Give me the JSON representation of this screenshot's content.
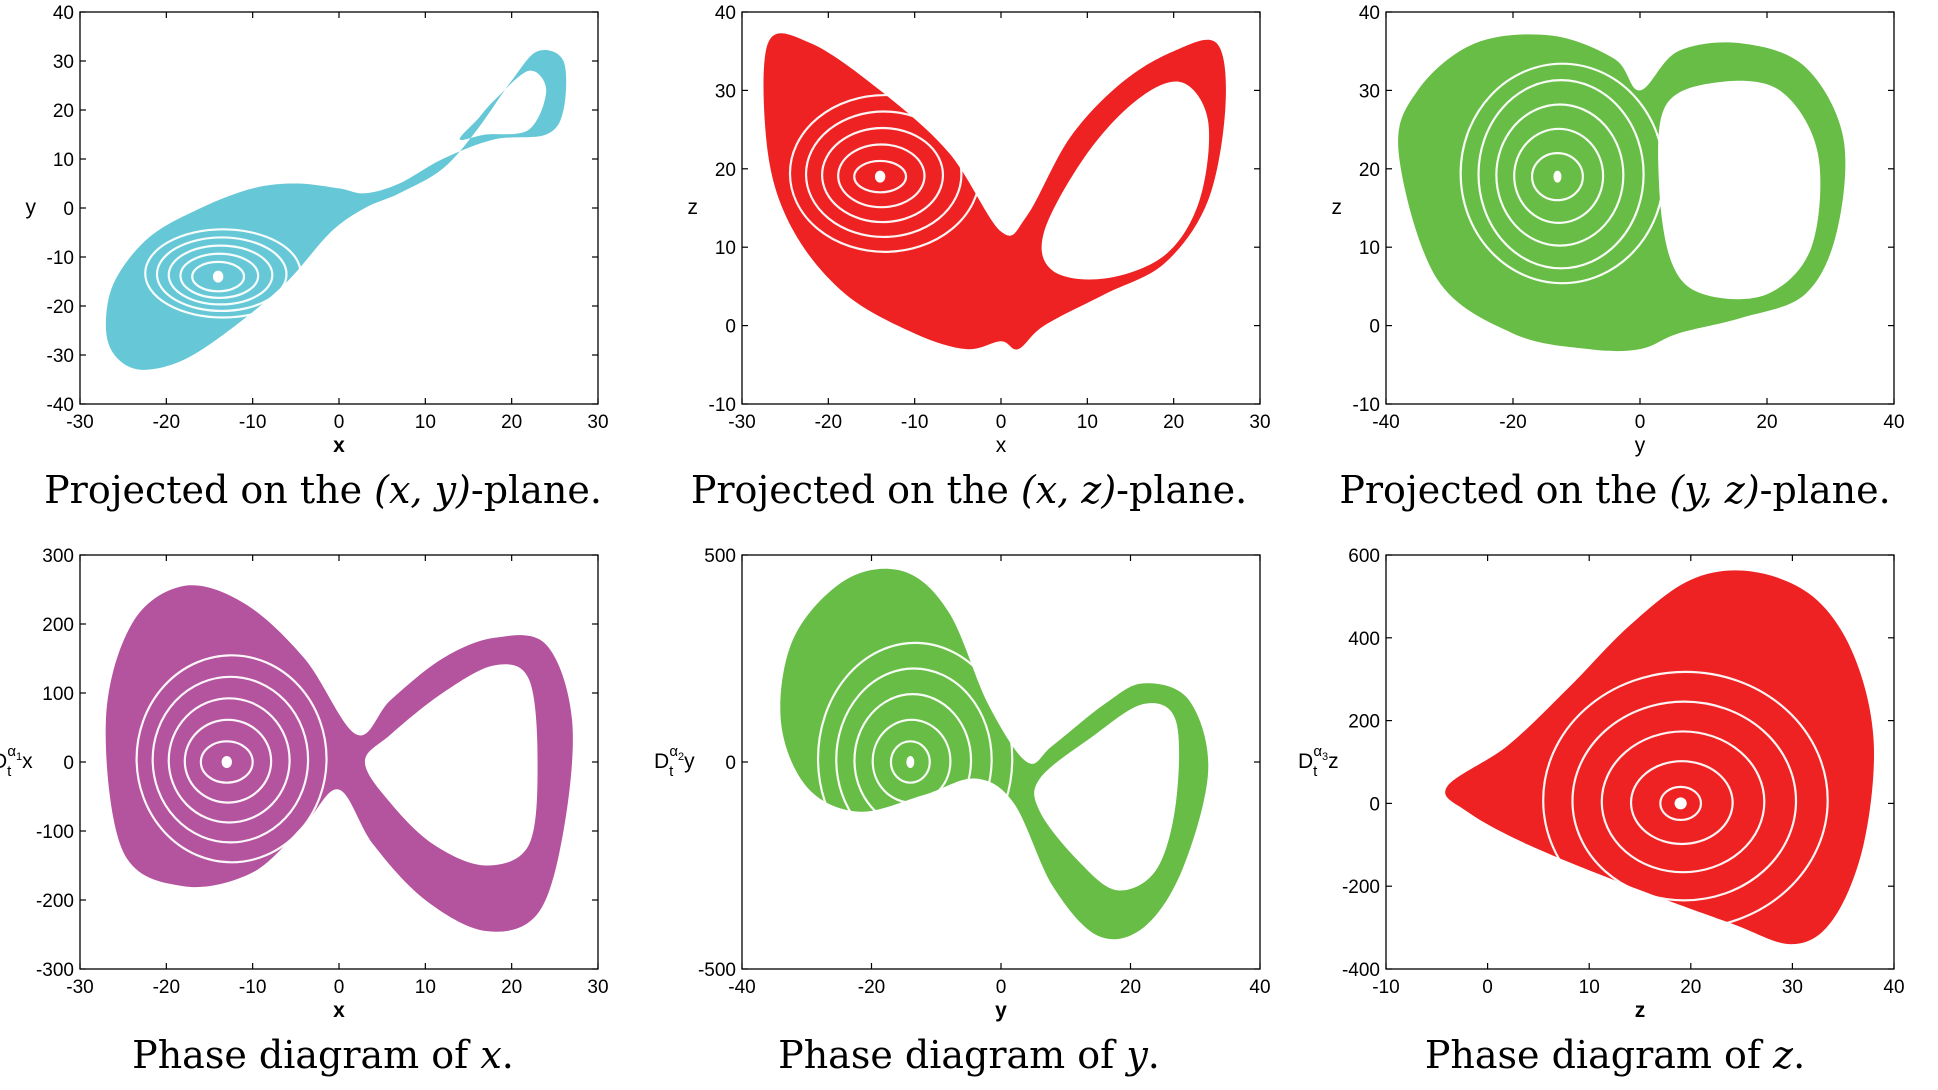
{
  "chart_data": [
    {
      "type": "scatter",
      "xlabel": "x",
      "ylabel": "y",
      "xlim": [
        -30,
        30
      ],
      "ylim": [
        -40,
        40
      ],
      "xticks": [
        -30,
        -20,
        -10,
        0,
        10,
        20,
        30
      ],
      "yticks": [
        -40,
        -30,
        -20,
        -10,
        0,
        10,
        20,
        30,
        40
      ],
      "color": "#66c8d6",
      "attractor": "xy",
      "caption": {
        "pre": "Projected on the ",
        "math": "(x, y)",
        "post": "-plane."
      }
    },
    {
      "type": "scatter",
      "xlabel": "x",
      "ylabel": "z",
      "xlim": [
        -30,
        30
      ],
      "ylim": [
        -10,
        40
      ],
      "xticks": [
        -30,
        -20,
        -10,
        0,
        10,
        20,
        30
      ],
      "yticks": [
        -10,
        0,
        10,
        20,
        30,
        40
      ],
      "color": "#ee2222",
      "attractor": "xz",
      "caption": {
        "pre": "Projected on the ",
        "math": "(x, z)",
        "post": "-plane."
      }
    },
    {
      "type": "scatter",
      "xlabel": "y",
      "ylabel": "z",
      "xlim": [
        -40,
        40
      ],
      "ylim": [
        -10,
        40
      ],
      "xticks": [
        -40,
        -20,
        0,
        20,
        40
      ],
      "yticks": [
        -10,
        0,
        10,
        20,
        30,
        40
      ],
      "color": "#67bd45",
      "attractor": "yz",
      "caption": {
        "pre": "Projected on the ",
        "math": "(y, z)",
        "post": "-plane."
      }
    },
    {
      "type": "scatter",
      "xlabel": "x",
      "ylabel_main": "D",
      "ylabel_sub": "t",
      "ylabel_sup": "α",
      "ylabel_supsub": "1",
      "ylabel_var": "x",
      "xlim": [
        -30,
        30
      ],
      "ylim": [
        -300,
        300
      ],
      "xticks": [
        -30,
        -20,
        -10,
        0,
        10,
        20,
        30
      ],
      "yticks": [
        -300,
        -200,
        -100,
        0,
        100,
        200,
        300
      ],
      "color": "#b4539e",
      "attractor": "dx",
      "caption": {
        "pre": "Phase diagram of ",
        "math": "x",
        "post": "."
      }
    },
    {
      "type": "scatter",
      "xlabel": "y",
      "ylabel_main": "D",
      "ylabel_sub": "t",
      "ylabel_sup": "α",
      "ylabel_supsub": "2",
      "ylabel_var": "y",
      "xlim": [
        -40,
        40
      ],
      "ylim": [
        -500,
        500
      ],
      "xticks": [
        -40,
        -20,
        0,
        20,
        40
      ],
      "yticks": [
        -500,
        0,
        500
      ],
      "color": "#67bd45",
      "attractor": "dy",
      "caption": {
        "pre": "Phase diagram of ",
        "math": "y",
        "post": "."
      }
    },
    {
      "type": "scatter",
      "xlabel": "z",
      "ylabel_main": "D",
      "ylabel_sub": "t",
      "ylabel_sup": "α",
      "ylabel_supsub": "3",
      "ylabel_var": "z",
      "xlim": [
        -10,
        40
      ],
      "ylim": [
        -400,
        600
      ],
      "xticks": [
        -10,
        0,
        10,
        20,
        30,
        40
      ],
      "yticks": [
        -400,
        -200,
        0,
        200,
        400,
        600
      ],
      "color": "#ee2222",
      "attractor": "dz",
      "caption": {
        "pre": "Phase diagram of ",
        "math": "z",
        "post": "."
      }
    }
  ]
}
